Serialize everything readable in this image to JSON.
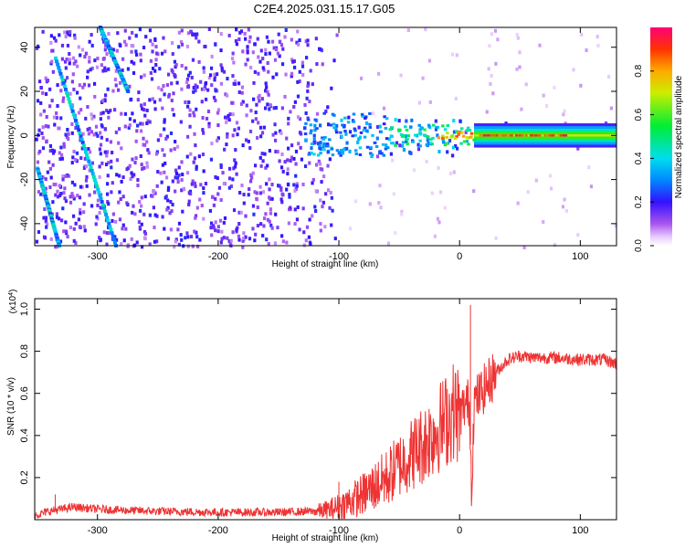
{
  "title": "C2E4.2025.031.15.17.G05",
  "chart_data": [
    {
      "type": "heatmap",
      "xlabel": "Height of straight line (km)",
      "ylabel": "Frequency (Hz)",
      "xlim": [
        -352,
        130
      ],
      "ylim": [
        -50,
        49
      ],
      "xticks": [
        -300,
        -200,
        -100,
        0,
        100
      ],
      "yticks": [
        -40,
        -20,
        0,
        20,
        40
      ],
      "colorbar": {
        "label": "Normalized spectral amplitude",
        "range": [
          0,
          1
        ],
        "ticks": [
          0.0,
          0.2,
          0.4,
          0.6,
          0.8
        ],
        "tick_labels": [
          "0.0",
          "0.2",
          "0.4",
          "0.6",
          "0.8"
        ],
        "colormap": "rainbow (white-violet-blue-cyan-green-yellow-orange-red)"
      },
      "features": [
        {
          "name": "diagonal streak",
          "from": [
            -335,
            35
          ],
          "to": [
            -285,
            -50
          ]
        },
        {
          "name": "diagonal streak",
          "from": [
            -350,
            -15
          ],
          "to": [
            -332,
            -50
          ]
        },
        {
          "name": "diagonal streak",
          "from": [
            -298,
            49
          ],
          "to": [
            -275,
            20
          ]
        },
        {
          "name": "main line",
          "from": [
            -130,
            0
          ],
          "to": [
            130,
            0
          ]
        }
      ]
    },
    {
      "type": "line",
      "xlabel": "Height of straight line (km)",
      "ylabel": "SNR (10 * v/v)",
      "y_multiplier": "(x10^4)",
      "xlim": [
        -352,
        130
      ],
      "ylim": [
        0,
        1.05
      ],
      "xticks": [
        -300,
        -200,
        -100,
        0,
        100
      ],
      "yticks": [
        0.2,
        0.4,
        0.6,
        0.8,
        1.0
      ],
      "color": "#ee3333",
      "series": [
        {
          "x": [
            -352,
            -340,
            -330,
            -320,
            -300,
            -280,
            -250,
            -200,
            -150,
            -120,
            -110,
            -100,
            -90,
            -80,
            -70,
            -60,
            -50,
            -40,
            -30,
            -20,
            -10,
            -5,
            0,
            5,
            8,
            10,
            12,
            15,
            20,
            25,
            30,
            35,
            40,
            50,
            60,
            80,
            100,
            120,
            130
          ],
          "y": [
            0.02,
            0.04,
            0.05,
            0.06,
            0.05,
            0.045,
            0.04,
            0.035,
            0.035,
            0.04,
            0.045,
            0.06,
            0.09,
            0.12,
            0.16,
            0.2,
            0.26,
            0.31,
            0.36,
            0.42,
            0.48,
            0.52,
            0.5,
            0.55,
            0.56,
            0.15,
            0.56,
            0.58,
            0.62,
            0.66,
            0.7,
            0.73,
            0.76,
            0.78,
            0.77,
            0.77,
            0.76,
            0.76,
            0.74
          ],
          "spikes": [
            [
              9,
              1.02
            ],
            [
              -335,
              0.12
            ],
            [
              -100,
              0.18
            ],
            [
              -40,
              0.42
            ]
          ]
        }
      ]
    }
  ]
}
